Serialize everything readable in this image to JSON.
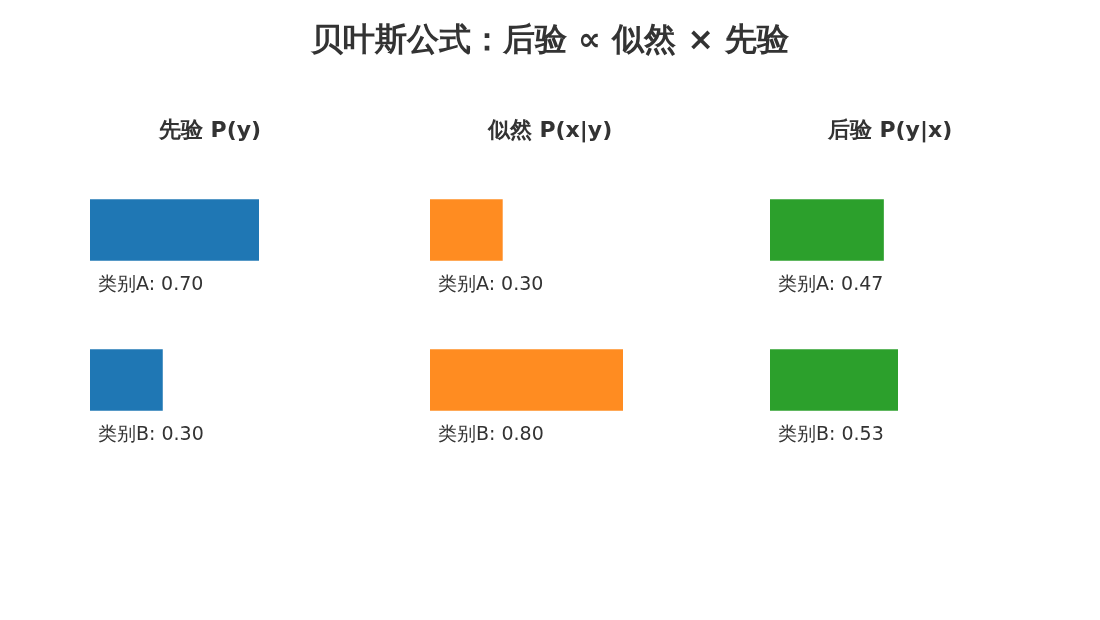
{
  "chart_data": [
    {
      "type": "other",
      "title": "贝叶斯公式：后验 ∝ 似然 × 先验"
    },
    {
      "type": "bar",
      "orientation": "horizontal",
      "title": "先验 P(y)",
      "categories": [
        null,
        null
      ],
      "values": [
        0.7,
        0.3
      ],
      "color": "#1f77b4",
      "value_labels": [
        "类别A: 0.70",
        "类别B: 0.30"
      ]
    },
    {
      "type": "bar",
      "orientation": "horizontal",
      "title": "似然 P(x|y)",
      "categories": [
        null,
        null
      ],
      "values": [
        0.3,
        0.8
      ],
      "color": "#ff8c21",
      "value_labels": [
        "类别A: 0.30",
        "类别B: 0.80"
      ]
    },
    {
      "type": "bar",
      "orientation": "horizontal",
      "title": "后验 P(y|x)",
      "categories": [
        null,
        null
      ],
      "values": [
        0.47,
        0.53
      ],
      "color": "#2ca02c",
      "value_labels": [
        "类别A: 0.47",
        "类别B: 0.53"
      ]
    }
  ]
}
